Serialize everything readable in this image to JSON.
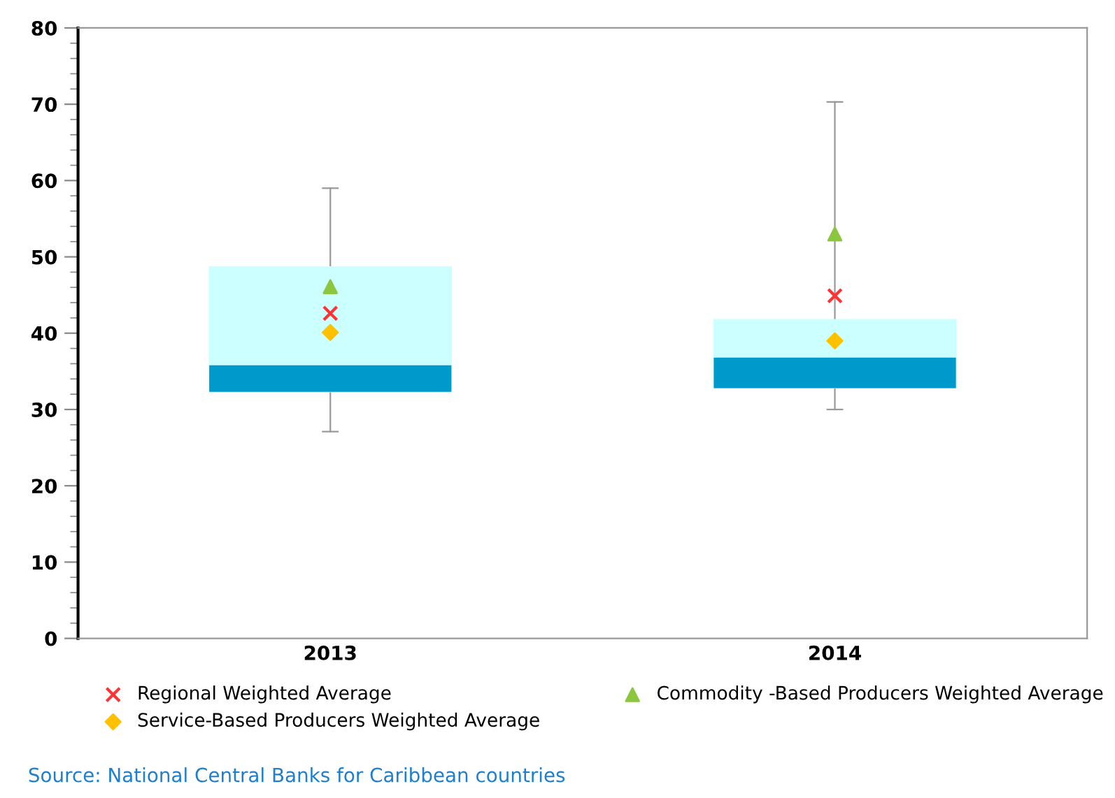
{
  "chart_data": {
    "type": "box",
    "categories": [
      "2013",
      "2014"
    ],
    "boxes": [
      {
        "low": 27.1,
        "q1": 32.3,
        "median": 35.8,
        "q3": 48.7,
        "high": 59.0
      },
      {
        "low": 30.0,
        "q1": 32.8,
        "median": 36.8,
        "q3": 41.8,
        "high": 70.3
      }
    ],
    "colors": [
      "#0099cc",
      "#ccffff"
    ],
    "series": [
      {
        "type": "scatter",
        "name": "Regional Weighted Average",
        "color": "#ff3333",
        "marker": "cross",
        "values": [
          42.6,
          44.9
        ]
      },
      {
        "type": "scatter",
        "name": "Commodity -Based Producers Weighted Average",
        "color": "#8cc63f",
        "marker": "triangle",
        "values": [
          46.1,
          53.0
        ]
      },
      {
        "type": "scatter",
        "name": "Service-Based Producers Weighted Average",
        "color": "#ffc000",
        "marker": "diamond",
        "values": [
          40.1,
          39.0
        ]
      }
    ],
    "ylim": [
      0,
      80
    ],
    "yticks": [
      0,
      10,
      20,
      30,
      40,
      50,
      60,
      70,
      80
    ],
    "grid": false,
    "legend": "bottom",
    "annotations": [
      "Source: National Central Banks for Caribbean countries"
    ]
  }
}
